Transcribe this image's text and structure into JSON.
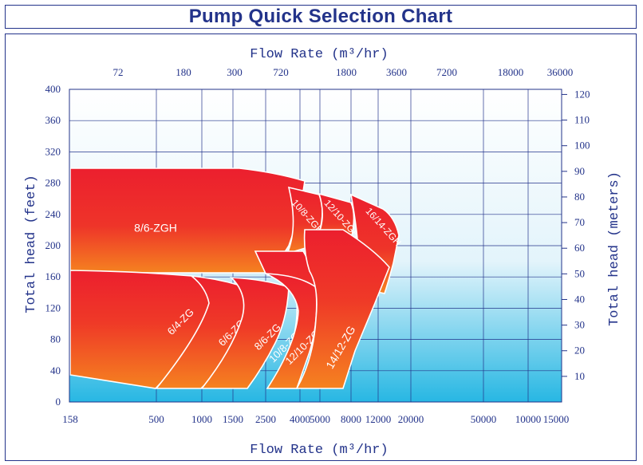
{
  "title": "Pump Quick Selection Chart",
  "chart_data": {
    "type": "area",
    "title": "Pump Quick Selection Chart",
    "xlabel_top": "Flow Rate  (m³/hr)",
    "xlabel_bottom": "Flow Rate  (m³/hr)",
    "ylabel_left": "Total head (feet)",
    "ylabel_right": "Total head (meters)",
    "x_scale": "non-uniform",
    "ylim_feet": [
      0,
      400
    ],
    "ylim_meters": [
      0,
      122
    ],
    "grid": true,
    "top_ticks": [
      "72",
      "180",
      "300",
      "720",
      "1800",
      "3600",
      "7200",
      "18000",
      "36000"
    ],
    "bottom_ticks": [
      "158",
      "500",
      "1000",
      "1500",
      "2500",
      "4000",
      "5000",
      "8000",
      "12000",
      "20000",
      "50000",
      "10000",
      "15000"
    ],
    "left_ticks": [
      "0",
      "40",
      "80",
      "120",
      "160",
      "200",
      "240",
      "280",
      "320",
      "360",
      "400"
    ],
    "right_ticks": [
      "10",
      "20",
      "30",
      "40",
      "50",
      "60",
      "70",
      "80",
      "90",
      "100",
      "110",
      "120"
    ],
    "series": [
      {
        "name": "8/6-ZGH",
        "flow_min": 158,
        "flow_max": 2800,
        "head_min_ft": 165,
        "head_max_ft": 300
      },
      {
        "name": "10/8-ZGH",
        "flow_min": 2300,
        "flow_max": 5600,
        "head_min_ft": 180,
        "head_max_ft": 270
      },
      {
        "name": "12/10-ZGH",
        "flow_min": 4000,
        "flow_max": 12000,
        "head_min_ft": 170,
        "head_max_ft": 265
      },
      {
        "name": "16/14-ZGH",
        "flow_min": 8000,
        "flow_max": 17000,
        "head_min_ft": 140,
        "head_max_ft": 262
      },
      {
        "name": "6/4-ZG",
        "flow_min": 158,
        "flow_max": 1100,
        "head_min_ft": 20,
        "head_max_ft": 168
      },
      {
        "name": "6/6-ZG",
        "flow_min": 600,
        "flow_max": 1950,
        "head_min_ft": 20,
        "head_max_ft": 160
      },
      {
        "name": "8/6-ZG",
        "flow_min": 1000,
        "flow_max": 3100,
        "head_min_ft": 20,
        "head_max_ft": 160
      },
      {
        "name": "10/8-ZG",
        "flow_min": 1500,
        "flow_max": 4000,
        "head_min_ft": 20,
        "head_max_ft": 195
      },
      {
        "name": "12/10-ZG",
        "flow_min": 2500,
        "flow_max": 5300,
        "head_min_ft": 20,
        "head_max_ft": 165
      },
      {
        "name": "14/12-ZG",
        "flow_min": 3200,
        "flow_max": 15000,
        "head_min_ft": 20,
        "head_max_ft": 222
      }
    ]
  }
}
